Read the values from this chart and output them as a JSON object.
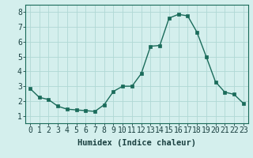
{
  "x": [
    0,
    1,
    2,
    3,
    4,
    5,
    6,
    7,
    8,
    9,
    10,
    11,
    12,
    13,
    14,
    15,
    16,
    17,
    18,
    19,
    20,
    21,
    22,
    23
  ],
  "y": [
    2.85,
    2.25,
    2.1,
    1.65,
    1.45,
    1.4,
    1.35,
    1.3,
    1.75,
    2.65,
    3.0,
    3.0,
    3.85,
    5.7,
    5.75,
    7.6,
    7.85,
    7.75,
    6.65,
    5.0,
    3.3,
    2.6,
    2.45,
    1.85
  ],
  "line_color": "#1a6b5a",
  "marker": "s",
  "marker_size": 2.5,
  "bg_color": "#d4efed",
  "grid_color": "#b0d8d4",
  "xlabel": "Humidex (Indice chaleur)",
  "xlabel_fontsize": 7.5,
  "tick_fontsize": 7,
  "ylim": [
    0.5,
    8.5
  ],
  "xlim": [
    -0.5,
    23.5
  ],
  "yticks": [
    1,
    2,
    3,
    4,
    5,
    6,
    7,
    8
  ],
  "xticks": [
    0,
    1,
    2,
    3,
    4,
    5,
    6,
    7,
    8,
    9,
    10,
    11,
    12,
    13,
    14,
    15,
    16,
    17,
    18,
    19,
    20,
    21,
    22,
    23
  ],
  "spine_color": "#1a6b5a"
}
